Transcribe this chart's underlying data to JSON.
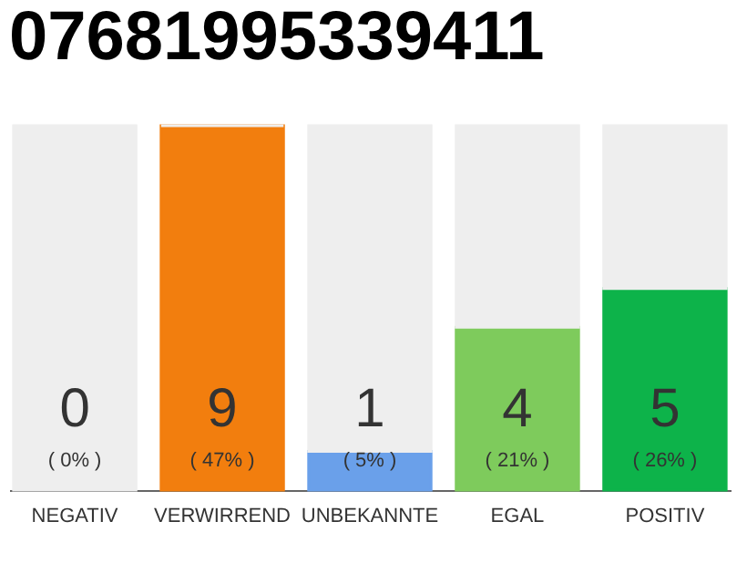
{
  "chart_data": {
    "type": "bar",
    "title": "07681995339411",
    "categories": [
      "NEGATIV",
      "VERWIRREND",
      "UNBEKANNTE",
      "EGAL",
      "POSITIV"
    ],
    "stacked": true,
    "series": [
      {
        "colors": [
          "#555555",
          "#f27e0e",
          "#6aa0ea",
          "#7ecb5c",
          "#0db34a"
        ],
        "values": [
          0,
          47,
          5,
          21,
          26
        ],
        "value_labels": [
          "( 0% )",
          "( 47% )",
          "( 5% )",
          "( 21% )",
          "( 26% )"
        ]
      },
      {
        "color": "#eeeeee",
        "values": [
          47,
          0,
          42,
          26,
          21
        ]
      }
    ],
    "ylim": [
      0,
      47
    ],
    "annotations": [
      "0",
      "9",
      "1",
      "4",
      "5"
    ]
  }
}
